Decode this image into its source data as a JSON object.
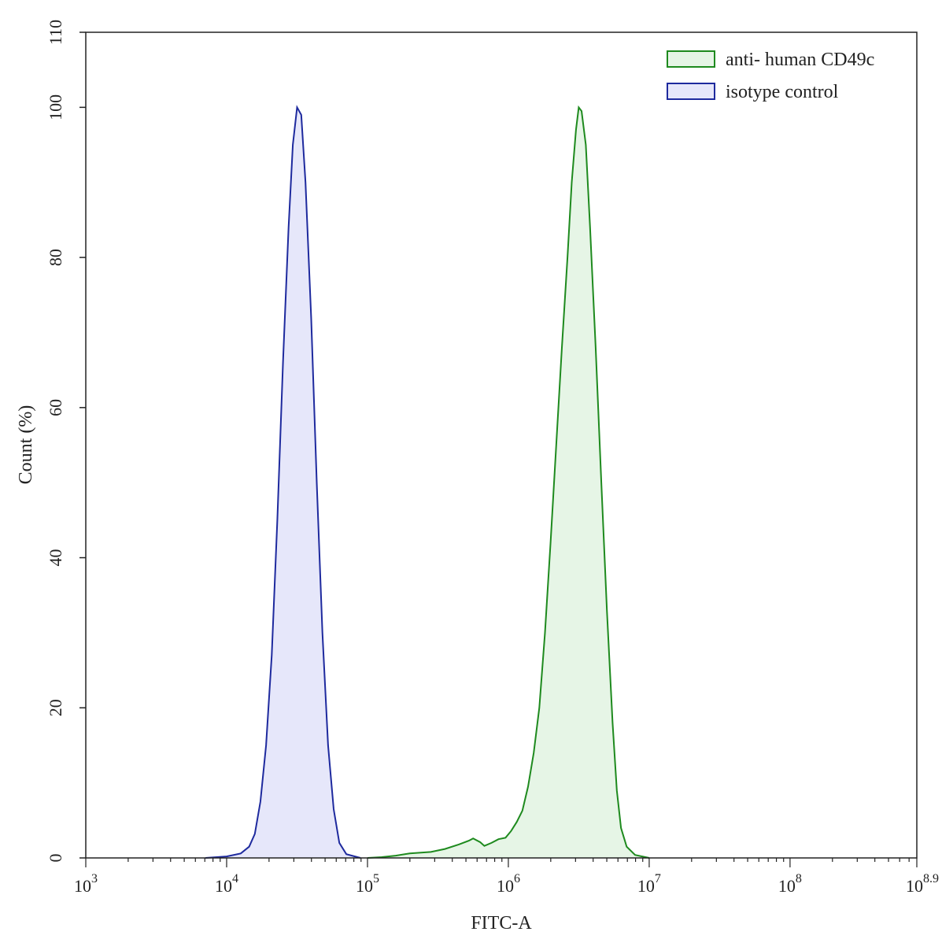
{
  "chart_data": {
    "type": "area",
    "xlabel": "FITC-A",
    "ylabel": "Count  (%)",
    "x_scale": "log10",
    "xlim": [
      3,
      8.9
    ],
    "ylim": [
      0,
      110
    ],
    "y_ticks": [
      "0",
      "20",
      "40",
      "60",
      "80",
      "100",
      "110"
    ],
    "y_tick_values": [
      0,
      20,
      40,
      60,
      80,
      100,
      110
    ],
    "x_ticks": [
      {
        "base": "10",
        "exp": "3",
        "value": 3
      },
      {
        "base": "10",
        "exp": "4",
        "value": 4
      },
      {
        "base": "10",
        "exp": "5",
        "value": 5
      },
      {
        "base": "10",
        "exp": "6",
        "value": 6
      },
      {
        "base": "10",
        "exp": "7",
        "value": 7
      },
      {
        "base": "10",
        "exp": "8",
        "value": 8
      },
      {
        "base": "10",
        "exp": "8.9",
        "value": 8.9
      }
    ],
    "legend_position": "top-right",
    "series": [
      {
        "name": "anti- human CD49c",
        "stroke": "#1e8a1e",
        "fill": "#e6f5e6",
        "points": [
          [
            5.0,
            0
          ],
          [
            5.1,
            0.1
          ],
          [
            5.2,
            0.3
          ],
          [
            5.3,
            0.6
          ],
          [
            5.45,
            0.8
          ],
          [
            5.55,
            1.2
          ],
          [
            5.65,
            1.8
          ],
          [
            5.72,
            2.3
          ],
          [
            5.75,
            2.6
          ],
          [
            5.8,
            2.1
          ],
          [
            5.83,
            1.6
          ],
          [
            5.88,
            2.0
          ],
          [
            5.93,
            2.5
          ],
          [
            5.98,
            2.7
          ],
          [
            6.02,
            3.6
          ],
          [
            6.06,
            4.8
          ],
          [
            6.1,
            6.3
          ],
          [
            6.14,
            9.5
          ],
          [
            6.18,
            14
          ],
          [
            6.22,
            20
          ],
          [
            6.26,
            30
          ],
          [
            6.3,
            42
          ],
          [
            6.34,
            55
          ],
          [
            6.38,
            68
          ],
          [
            6.42,
            80
          ],
          [
            6.45,
            90
          ],
          [
            6.48,
            97
          ],
          [
            6.5,
            100
          ],
          [
            6.52,
            99.5
          ],
          [
            6.55,
            95
          ],
          [
            6.58,
            84
          ],
          [
            6.62,
            68
          ],
          [
            6.66,
            50
          ],
          [
            6.7,
            33
          ],
          [
            6.74,
            18
          ],
          [
            6.77,
            9
          ],
          [
            6.8,
            4
          ],
          [
            6.84,
            1.5
          ],
          [
            6.9,
            0.4
          ],
          [
            7.0,
            0
          ]
        ]
      },
      {
        "name": "isotype control",
        "stroke": "#1e2a9e",
        "fill": "#e6e7fa",
        "points": [
          [
            3.85,
            0
          ],
          [
            4.0,
            0.2
          ],
          [
            4.1,
            0.6
          ],
          [
            4.16,
            1.5
          ],
          [
            4.2,
            3.2
          ],
          [
            4.24,
            7.5
          ],
          [
            4.28,
            15
          ],
          [
            4.32,
            27
          ],
          [
            4.36,
            45
          ],
          [
            4.4,
            66
          ],
          [
            4.44,
            84
          ],
          [
            4.47,
            95
          ],
          [
            4.5,
            100
          ],
          [
            4.53,
            99
          ],
          [
            4.56,
            90
          ],
          [
            4.6,
            72
          ],
          [
            4.64,
            50
          ],
          [
            4.68,
            30
          ],
          [
            4.72,
            15
          ],
          [
            4.76,
            6.5
          ],
          [
            4.8,
            2.0
          ],
          [
            4.85,
            0.5
          ],
          [
            4.95,
            0
          ]
        ]
      }
    ]
  }
}
